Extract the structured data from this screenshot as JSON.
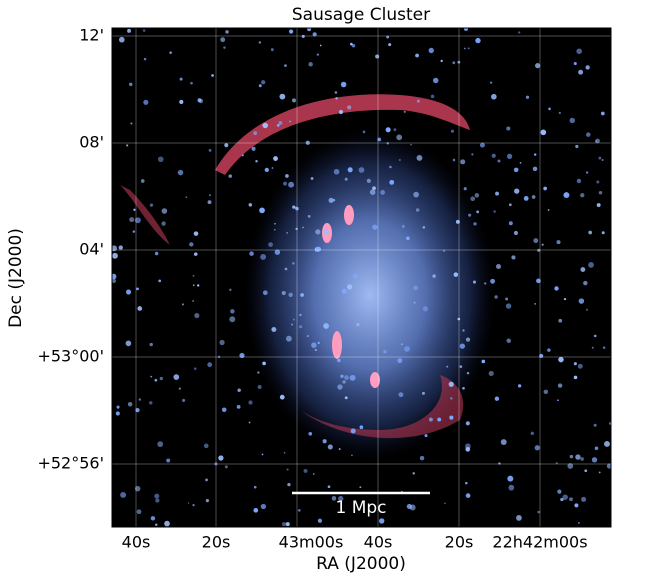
{
  "title": "Sausage Cluster",
  "x_axis": {
    "label": "RA (J2000)",
    "ticks": [
      "40s",
      "20s",
      "43m00s",
      "40s",
      "20s",
      "22h42m00s"
    ]
  },
  "y_axis": {
    "label": "Dec (J2000)",
    "ticks": [
      "12'",
      "08'",
      "04'",
      "+53°00'",
      "+52°56'"
    ]
  },
  "scale_bar": {
    "label": "1 Mpc"
  }
}
